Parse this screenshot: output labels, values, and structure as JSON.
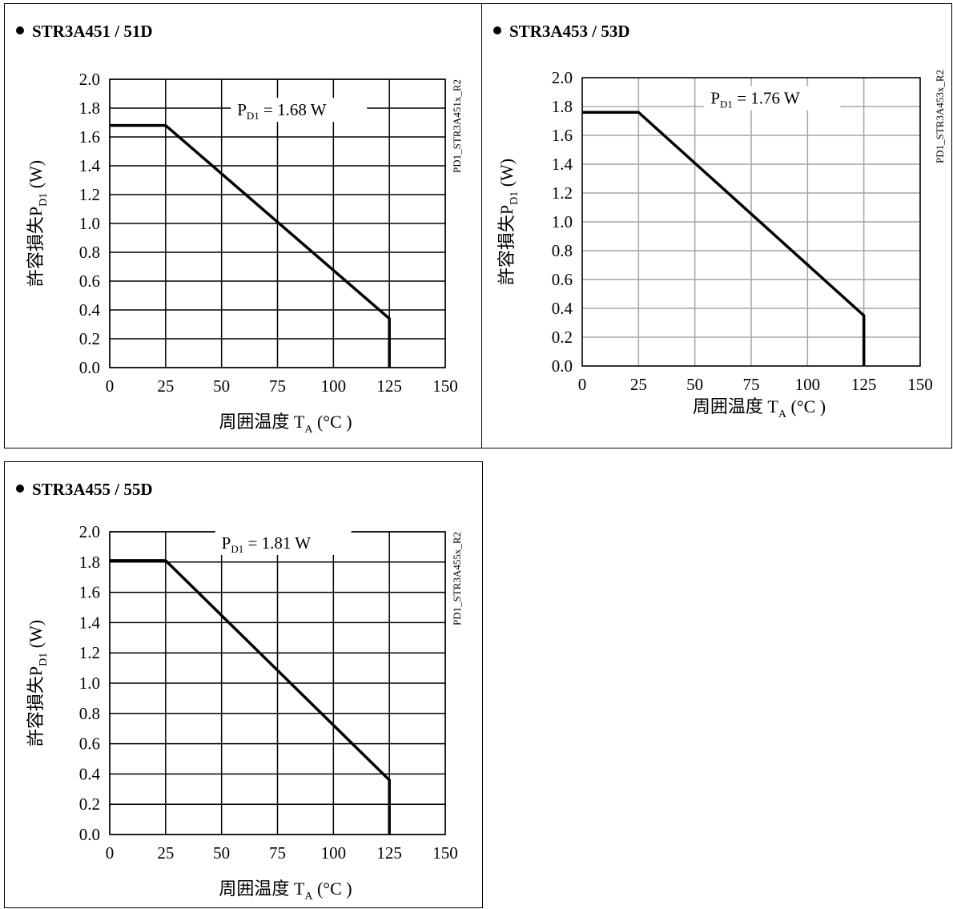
{
  "chart_data": [
    {
      "type": "line",
      "title": "STR3A451 / 51D",
      "xlabel": "周囲温度 T",
      "xlabel_sub": "A",
      "xlabel_unit": " (°C )",
      "ylabel": "許容損失P",
      "ylabel_sub": "D1",
      "ylabel_unit": " (W)",
      "x_ticks": [
        "0",
        "25",
        "50",
        "75",
        "100",
        "125",
        "150"
      ],
      "y_ticks": [
        "0.0",
        "0.2",
        "0.4",
        "0.6",
        "0.8",
        "1.0",
        "1.2",
        "1.4",
        "1.6",
        "1.8",
        "2.0"
      ],
      "xlim": [
        0,
        150
      ],
      "ylim": [
        0,
        2.0
      ],
      "grid": true,
      "grid_color": "#000000",
      "series": [
        {
          "x": [
            0,
            25,
            125,
            125
          ],
          "y": [
            1.68,
            1.68,
            0.34,
            0
          ]
        }
      ],
      "annotation": {
        "main": "P",
        "sub": "D1",
        "rest": " = 1.68 W",
        "x": 57,
        "y": 1.76
      },
      "side_label": "PD1_STR3A451x_R2"
    },
    {
      "type": "line",
      "title": "STR3A453 / 53D",
      "xlabel": "周囲温度 T",
      "xlabel_sub": "A",
      "xlabel_unit": " (°C )",
      "ylabel": "許容損失P",
      "ylabel_sub": "D1",
      "ylabel_unit": " (W)",
      "x_ticks": [
        "0",
        "25",
        "50",
        "75",
        "100",
        "125",
        "150"
      ],
      "y_ticks": [
        "0.0",
        "0.2",
        "0.4",
        "0.6",
        "0.8",
        "1.0",
        "1.2",
        "1.4",
        "1.6",
        "1.8",
        "2.0"
      ],
      "xlim": [
        0,
        150
      ],
      "ylim": [
        0,
        2.0
      ],
      "grid": true,
      "grid_color": "#a6a6a6",
      "series": [
        {
          "x": [
            0,
            25,
            125,
            125
          ],
          "y": [
            1.76,
            1.76,
            0.35,
            0
          ]
        }
      ],
      "annotation": {
        "main": "P",
        "sub": "D1",
        "rest": " = 1.76 W",
        "x": 57,
        "y": 1.83
      },
      "side_label": "PD1_STR3A453x_R2"
    },
    {
      "type": "line",
      "title": "STR3A455 / 55D",
      "xlabel": "周囲温度 T",
      "xlabel_sub": "A",
      "xlabel_unit": " (°C )",
      "ylabel": "許容損失P",
      "ylabel_sub": "D1",
      "ylabel_unit": " (W)",
      "x_ticks": [
        "0",
        "25",
        "50",
        "75",
        "100",
        "125",
        "150"
      ],
      "y_ticks": [
        "0.0",
        "0.2",
        "0.4",
        "0.6",
        "0.8",
        "1.0",
        "1.2",
        "1.4",
        "1.6",
        "1.8",
        "2.0"
      ],
      "xlim": [
        0,
        150
      ],
      "ylim": [
        0,
        2.0
      ],
      "grid": true,
      "grid_color": "#000000",
      "series": [
        {
          "x": [
            0,
            25,
            125,
            125
          ],
          "y": [
            1.81,
            1.81,
            0.36,
            0
          ]
        }
      ],
      "annotation": {
        "main": "P",
        "sub": "D1",
        "rest": " = 1.81 W",
        "x": 50,
        "y": 1.9
      },
      "side_label": "PD1_STR3A455x_R2"
    }
  ]
}
